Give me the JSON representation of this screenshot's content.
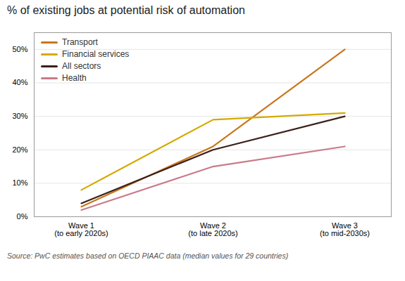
{
  "chart_data": {
    "type": "line",
    "title": "% of existing jobs at potential risk of automation",
    "source": "Source: PwC estimates based on OECD PIAAC data (median values for 29 countries)",
    "categories": [
      "Wave 1\n(to early 2020s)",
      "Wave 2\n(to late 2020s)",
      "Wave 3\n(to mid-2030s)"
    ],
    "series": [
      {
        "name": "Transport",
        "color": "#c8761a",
        "values": [
          3,
          21,
          50
        ]
      },
      {
        "name": "Financial services",
        "color": "#d4aa00",
        "values": [
          8,
          29,
          31
        ]
      },
      {
        "name": "All sectors",
        "color": "#3b1f1a",
        "values": [
          4,
          20,
          30
        ]
      },
      {
        "name": "Health",
        "color": "#c97a8a",
        "values": [
          2,
          15,
          21
        ]
      }
    ],
    "ylim": [
      0,
      55
    ],
    "yticks": [
      {
        "value": 0,
        "label": "0%"
      },
      {
        "value": 10,
        "label": "10%"
      },
      {
        "value": 20,
        "label": "20%"
      },
      {
        "value": 30,
        "label": "30%"
      },
      {
        "value": 40,
        "label": "40%"
      },
      {
        "value": 50,
        "label": "50%"
      }
    ],
    "grid": true,
    "legend": "upper left"
  }
}
